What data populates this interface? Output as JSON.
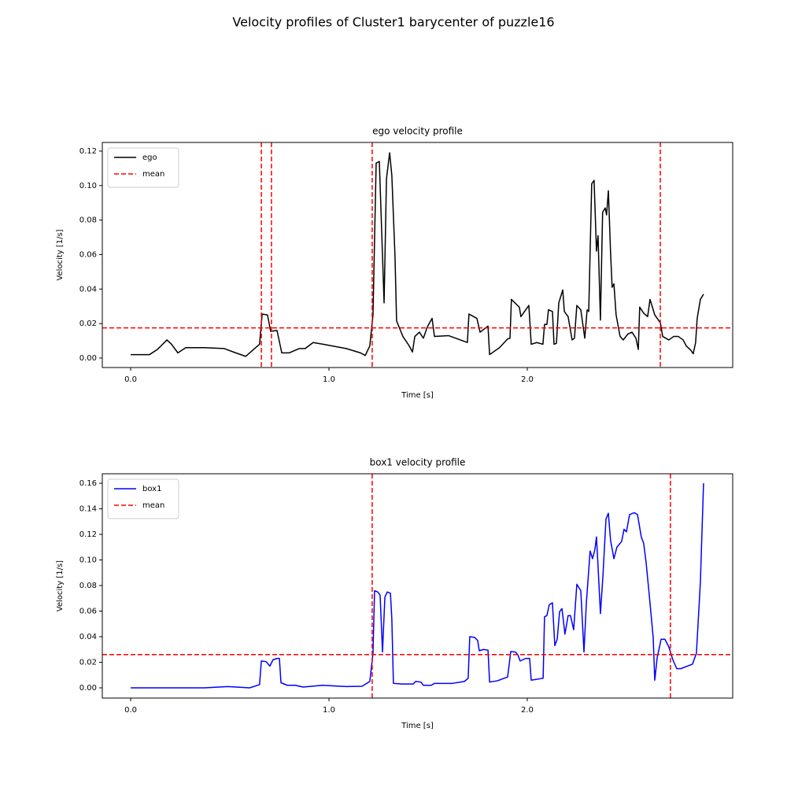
{
  "title": "Velocity profiles of  Cluster1 barycenter of puzzle16",
  "chart_data": [
    {
      "type": "line",
      "title": "ego velocity profile",
      "xlabel": "Time [s]",
      "ylabel": "Velocity [1/s]",
      "xlim": [
        -0.143,
        3.036
      ],
      "ylim": [
        -0.0055,
        0.125
      ],
      "xticks": [
        {
          "value": 0,
          "label": "0.0"
        },
        {
          "value": 1,
          "label": "1.0"
        },
        {
          "value": 2,
          "label": "2.0"
        }
      ],
      "yticks": [
        {
          "value": 0,
          "label": "0.00"
        },
        {
          "value": 0.02,
          "label": "0.02"
        },
        {
          "value": 0.04,
          "label": "0.04"
        },
        {
          "value": 0.06,
          "label": "0.06"
        },
        {
          "value": 0.08,
          "label": "0.08"
        },
        {
          "value": 0.1,
          "label": "0.10"
        },
        {
          "value": 0.12,
          "label": "0.12"
        }
      ],
      "legend": "upper left",
      "x": [
        0,
        0.056,
        0.095,
        0.135,
        0.183,
        0.206,
        0.238,
        0.278,
        0.373,
        0.472,
        0.53,
        0.58,
        0.65,
        0.663,
        0.69,
        0.706,
        0.738,
        0.762,
        0.8,
        0.85,
        0.88,
        0.92,
        0.97,
        1.087,
        1.159,
        1.183,
        1.206,
        1.222,
        1.238,
        1.254,
        1.278,
        1.29,
        1.306,
        1.317,
        1.333,
        1.341,
        1.373,
        1.405,
        1.421,
        1.433,
        1.456,
        1.476,
        1.496,
        1.52,
        1.532,
        1.603,
        1.698,
        1.706,
        1.746,
        1.762,
        1.802,
        1.81,
        1.86,
        1.9,
        1.913,
        1.92,
        1.96,
        1.968,
        2.008,
        2.02,
        2.048,
        2.079,
        2.087,
        2.099,
        2.107,
        2.127,
        2.135,
        2.147,
        2.159,
        2.179,
        2.187,
        2.206,
        2.226,
        2.238,
        2.25,
        2.27,
        2.29,
        2.302,
        2.31,
        2.325,
        2.337,
        2.349,
        2.357,
        2.369,
        2.38,
        2.393,
        2.4,
        2.409,
        2.42,
        2.428,
        2.437,
        2.448,
        2.468,
        2.484,
        2.508,
        2.528,
        2.548,
        2.56,
        2.567,
        2.587,
        2.607,
        2.619,
        2.643,
        2.671,
        2.683,
        2.714,
        2.738,
        2.762,
        2.786,
        2.802,
        2.825,
        2.837,
        2.849,
        2.857,
        2.873,
        2.889
      ],
      "series": [
        {
          "name": "ego",
          "color": "#000000",
          "values": [
            0.002,
            0.002,
            0.002,
            0.005,
            0.0105,
            0.008,
            0.003,
            0.006,
            0.006,
            0.0055,
            0.003,
            0.001,
            0.008,
            0.0255,
            0.025,
            0.0155,
            0.016,
            0.003,
            0.003,
            0.0055,
            0.0055,
            0.009,
            0.008,
            0.0055,
            0.003,
            0.0015,
            0.007,
            0.025,
            0.113,
            0.114,
            0.032,
            0.104,
            0.119,
            0.106,
            0.059,
            0.0215,
            0.0125,
            0.007,
            0.0035,
            0.0125,
            0.015,
            0.0115,
            0.018,
            0.023,
            0.0125,
            0.013,
            0.009,
            0.0255,
            0.023,
            0.015,
            0.0185,
            0.002,
            0.006,
            0.011,
            0.0115,
            0.034,
            0.0295,
            0.024,
            0.0305,
            0.008,
            0.009,
            0.008,
            0.0195,
            0.0195,
            0.028,
            0.027,
            0.008,
            0.0085,
            0.032,
            0.0395,
            0.027,
            0.024,
            0.0105,
            0.0115,
            0.0305,
            0.028,
            0.0115,
            0.028,
            0.027,
            0.101,
            0.103,
            0.062,
            0.071,
            0.022,
            0.0845,
            0.087,
            0.083,
            0.097,
            0.0615,
            0.041,
            0.043,
            0.025,
            0.0125,
            0.0105,
            0.014,
            0.015,
            0.0115,
            0.005,
            0.0295,
            0.026,
            0.024,
            0.034,
            0.025,
            0.0205,
            0.0125,
            0.0105,
            0.0125,
            0.0125,
            0.0105,
            0.007,
            0.0045,
            0.0025,
            0.009,
            0.023,
            0.034,
            0.037
          ]
        },
        {
          "name": "mean",
          "color": "#ff0000",
          "linestyle": "dashed",
          "hline": 0.0175,
          "vlines": [
            0.659,
            0.71,
            1.218,
            2.671
          ]
        }
      ]
    },
    {
      "type": "line",
      "title": "box1 velocity profile",
      "xlabel": "Time [s]",
      "ylabel": "Velocity [1/s]",
      "xlim": [
        -0.143,
        3.036
      ],
      "ylim": [
        -0.008,
        0.1674
      ],
      "xticks": [
        {
          "value": 0,
          "label": "0.0"
        },
        {
          "value": 1,
          "label": "1.0"
        },
        {
          "value": 2,
          "label": "2.0"
        }
      ],
      "yticks": [
        {
          "value": 0,
          "label": "0.00"
        },
        {
          "value": 0.02,
          "label": "0.02"
        },
        {
          "value": 0.04,
          "label": "0.04"
        },
        {
          "value": 0.06,
          "label": "0.06"
        },
        {
          "value": 0.08,
          "label": "0.08"
        },
        {
          "value": 0.1,
          "label": "0.10"
        },
        {
          "value": 0.12,
          "label": "0.12"
        },
        {
          "value": 0.14,
          "label": "0.14"
        },
        {
          "value": 0.16,
          "label": "0.16"
        }
      ],
      "legend": "upper left",
      "x": [
        0,
        0.373,
        0.49,
        0.6,
        0.65,
        0.659,
        0.683,
        0.702,
        0.718,
        0.738,
        0.75,
        0.758,
        0.79,
        0.83,
        0.87,
        0.968,
        1.087,
        1.167,
        1.206,
        1.222,
        1.23,
        1.246,
        1.258,
        1.27,
        1.282,
        1.294,
        1.31,
        1.317,
        1.325,
        1.365,
        1.425,
        1.437,
        1.464,
        1.476,
        1.516,
        1.532,
        1.623,
        1.683,
        1.702,
        1.71,
        1.734,
        1.75,
        1.758,
        1.778,
        1.802,
        1.81,
        1.849,
        1.901,
        1.917,
        1.94,
        1.952,
        1.964,
        1.992,
        2.012,
        2.02,
        2.08,
        2.087,
        2.099,
        2.111,
        2.127,
        2.139,
        2.151,
        2.163,
        2.175,
        2.19,
        2.206,
        2.218,
        2.234,
        2.25,
        2.27,
        2.286,
        2.298,
        2.317,
        2.329,
        2.341,
        2.349,
        2.357,
        2.369,
        2.381,
        2.397,
        2.409,
        2.42,
        2.437,
        2.452,
        2.476,
        2.488,
        2.5,
        2.516,
        2.54,
        2.556,
        2.575,
        2.587,
        2.599,
        2.615,
        2.635,
        2.643,
        2.655,
        2.675,
        2.694,
        2.714,
        2.734,
        2.754,
        2.774,
        2.833,
        2.853,
        2.873,
        2.889
      ],
      "series": [
        {
          "name": "box1",
          "color": "#0000ff",
          "values": [
            0,
            0,
            0.001,
            0,
            0.0025,
            0.021,
            0.0205,
            0.017,
            0.022,
            0.023,
            0.023,
            0.004,
            0.002,
            0.002,
            0.0006,
            0.002,
            0.001,
            0.0012,
            0.005,
            0.027,
            0.076,
            0.075,
            0.0725,
            0.028,
            0.071,
            0.075,
            0.074,
            0.054,
            0.0035,
            0.003,
            0.003,
            0.005,
            0.0045,
            0.002,
            0.002,
            0.0035,
            0.0035,
            0.005,
            0.0075,
            0.04,
            0.0395,
            0.037,
            0.029,
            0.03,
            0.0295,
            0.0045,
            0.0055,
            0.0085,
            0.0285,
            0.028,
            0.026,
            0.021,
            0.023,
            0.023,
            0.006,
            0.0075,
            0.0555,
            0.0565,
            0.065,
            0.0665,
            0.033,
            0.038,
            0.0595,
            0.062,
            0.042,
            0.0565,
            0.0565,
            0.0455,
            0.081,
            0.076,
            0.028,
            0.0665,
            0.107,
            0.101,
            0.108,
            0.118,
            0.095,
            0.058,
            0.086,
            0.132,
            0.1365,
            0.1155,
            0.101,
            0.11,
            0.1145,
            0.124,
            0.122,
            0.1355,
            0.137,
            0.1355,
            0.118,
            0.113,
            0.0985,
            0.073,
            0.0395,
            0.006,
            0.0235,
            0.038,
            0.038,
            0.032,
            0.022,
            0.015,
            0.015,
            0.0185,
            0.027,
            0.0825,
            0.16
          ]
        },
        {
          "name": "mean",
          "color": "#ff0000",
          "linestyle": "dashed",
          "hline": 0.026,
          "vlines": [
            1.218,
            2.722
          ]
        }
      ]
    }
  ]
}
